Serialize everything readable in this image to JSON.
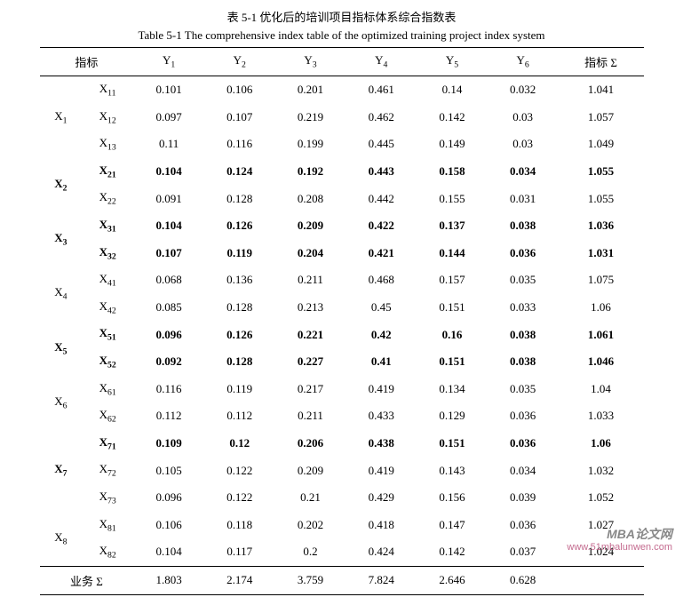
{
  "caption": {
    "cn": "表 5-1  优化后的培训项目指标体系综合指数表",
    "en": "Table 5-1 The comprehensive index table of the optimized training project index system"
  },
  "columns": {
    "indicator": "指标",
    "y1": "Y",
    "y2": "Y",
    "y3": "Y",
    "y4": "Y",
    "y5": "Y",
    "y6": "Y",
    "sum": "指标 Σ"
  },
  "groups": [
    {
      "label": "X",
      "sub": "1",
      "rows": [
        {
          "sub2": "11",
          "bold": false,
          "v": [
            "0.101",
            "0.106",
            "0.201",
            "0.461",
            "0.14",
            "0.032",
            "1.041"
          ]
        },
        {
          "sub2": "12",
          "bold": false,
          "v": [
            "0.097",
            "0.107",
            "0.219",
            "0.462",
            "0.142",
            "0.03",
            "1.057"
          ]
        },
        {
          "sub2": "13",
          "bold": false,
          "v": [
            "0.11",
            "0.116",
            "0.199",
            "0.445",
            "0.149",
            "0.03",
            "1.049"
          ]
        }
      ]
    },
    {
      "label": "X",
      "sub": "2",
      "rows": [
        {
          "sub2": "21",
          "bold": true,
          "v": [
            "0.104",
            "0.124",
            "0.192",
            "0.443",
            "0.158",
            "0.034",
            "1.055"
          ]
        },
        {
          "sub2": "22",
          "bold": false,
          "v": [
            "0.091",
            "0.128",
            "0.208",
            "0.442",
            "0.155",
            "0.031",
            "1.055"
          ]
        }
      ]
    },
    {
      "label": "X",
      "sub": "3",
      "rows": [
        {
          "sub2": "31",
          "bold": true,
          "v": [
            "0.104",
            "0.126",
            "0.209",
            "0.422",
            "0.137",
            "0.038",
            "1.036"
          ]
        },
        {
          "sub2": "32",
          "bold": true,
          "v": [
            "0.107",
            "0.119",
            "0.204",
            "0.421",
            "0.144",
            "0.036",
            "1.031"
          ]
        }
      ]
    },
    {
      "label": "X",
      "sub": "4",
      "rows": [
        {
          "sub2": "41",
          "bold": false,
          "v": [
            "0.068",
            "0.136",
            "0.211",
            "0.468",
            "0.157",
            "0.035",
            "1.075"
          ]
        },
        {
          "sub2": "42",
          "bold": false,
          "v": [
            "0.085",
            "0.128",
            "0.213",
            "0.45",
            "0.151",
            "0.033",
            "1.06"
          ]
        }
      ]
    },
    {
      "label": "X",
      "sub": "5",
      "rows": [
        {
          "sub2": "51",
          "bold": true,
          "v": [
            "0.096",
            "0.126",
            "0.221",
            "0.42",
            "0.16",
            "0.038",
            "1.061"
          ]
        },
        {
          "sub2": "52",
          "bold": true,
          "v": [
            "0.092",
            "0.128",
            "0.227",
            "0.41",
            "0.151",
            "0.038",
            "1.046"
          ]
        }
      ]
    },
    {
      "label": "X",
      "sub": "6",
      "rows": [
        {
          "sub2": "61",
          "bold": false,
          "v": [
            "0.116",
            "0.119",
            "0.217",
            "0.419",
            "0.134",
            "0.035",
            "1.04"
          ]
        },
        {
          "sub2": "62",
          "bold": false,
          "v": [
            "0.112",
            "0.112",
            "0.211",
            "0.433",
            "0.129",
            "0.036",
            "1.033"
          ]
        }
      ]
    },
    {
      "label": "X",
      "sub": "7",
      "rows": [
        {
          "sub2": "71",
          "bold": true,
          "v": [
            "0.109",
            "0.12",
            "0.206",
            "0.438",
            "0.151",
            "0.036",
            "1.06"
          ]
        },
        {
          "sub2": "72",
          "bold": false,
          "v": [
            "0.105",
            "0.122",
            "0.209",
            "0.419",
            "0.143",
            "0.034",
            "1.032"
          ]
        },
        {
          "sub2": "73",
          "bold": false,
          "v": [
            "0.096",
            "0.122",
            "0.21",
            "0.429",
            "0.156",
            "0.039",
            "1.052"
          ]
        }
      ]
    },
    {
      "label": "X",
      "sub": "8",
      "rows": [
        {
          "sub2": "81",
          "bold": false,
          "v": [
            "0.106",
            "0.118",
            "0.202",
            "0.418",
            "0.147",
            "0.036",
            "1.027"
          ]
        },
        {
          "sub2": "82",
          "bold": false,
          "v": [
            "0.104",
            "0.117",
            "0.2",
            "0.424",
            "0.142",
            "0.037",
            "1.024"
          ]
        }
      ]
    }
  ],
  "footer": {
    "label": "业务 Σ",
    "v": [
      "1.803",
      "2.174",
      "3.759",
      "7.824",
      "2.646",
      "0.628",
      ""
    ]
  },
  "watermark": {
    "l1": "MBA论文网",
    "l2": "www.51mbalunwen.com"
  }
}
